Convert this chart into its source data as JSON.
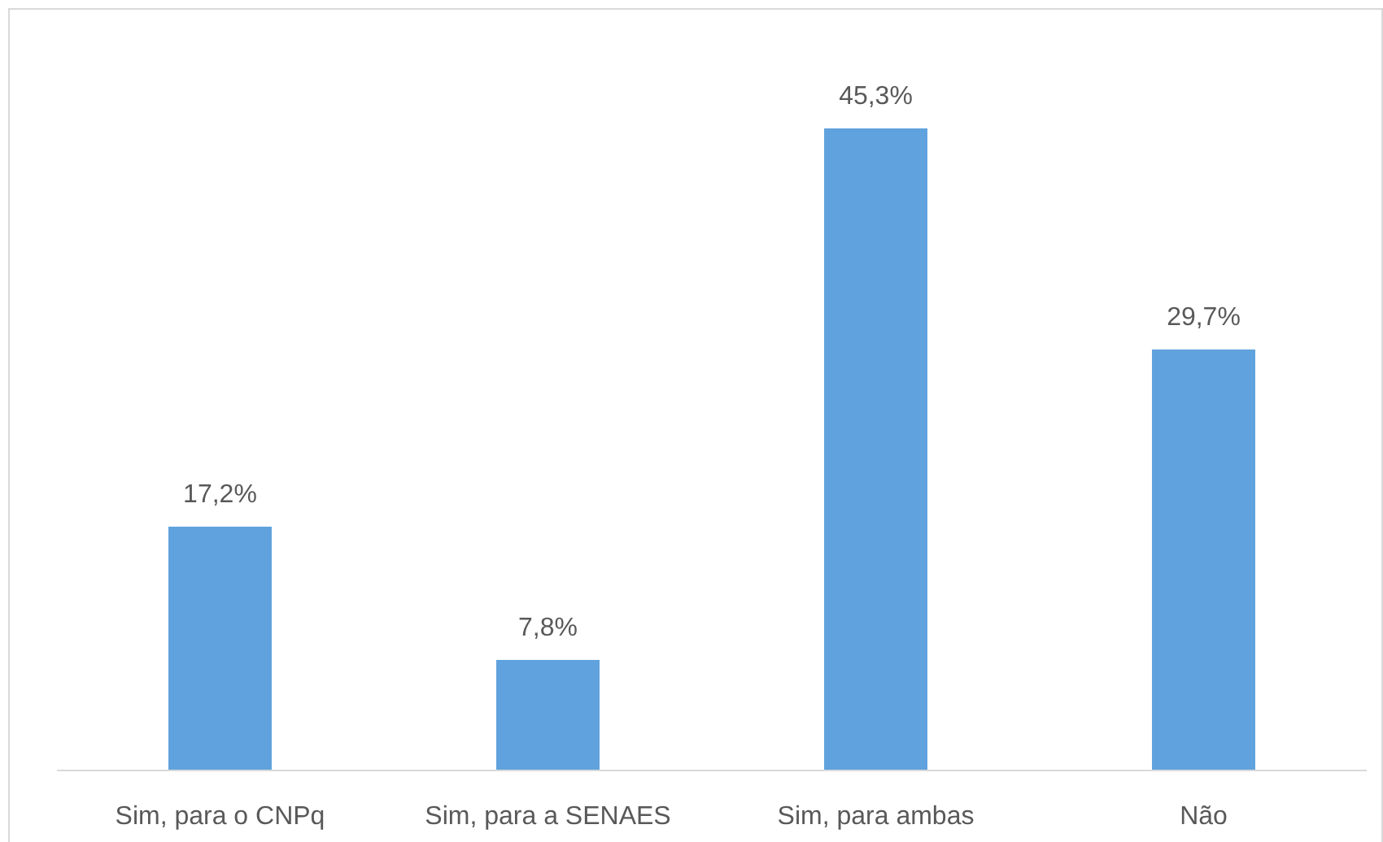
{
  "chart_data": {
    "type": "bar",
    "categories": [
      "Sim, para o CNPq",
      "Sim, para a SENAES",
      "Sim, para ambas",
      "Não"
    ],
    "values": [
      17.2,
      7.8,
      45.3,
      29.7
    ],
    "value_labels": [
      "17,2%",
      "7,8%",
      "45,3%",
      "29,7%"
    ],
    "color": "#5fa2dd"
  }
}
